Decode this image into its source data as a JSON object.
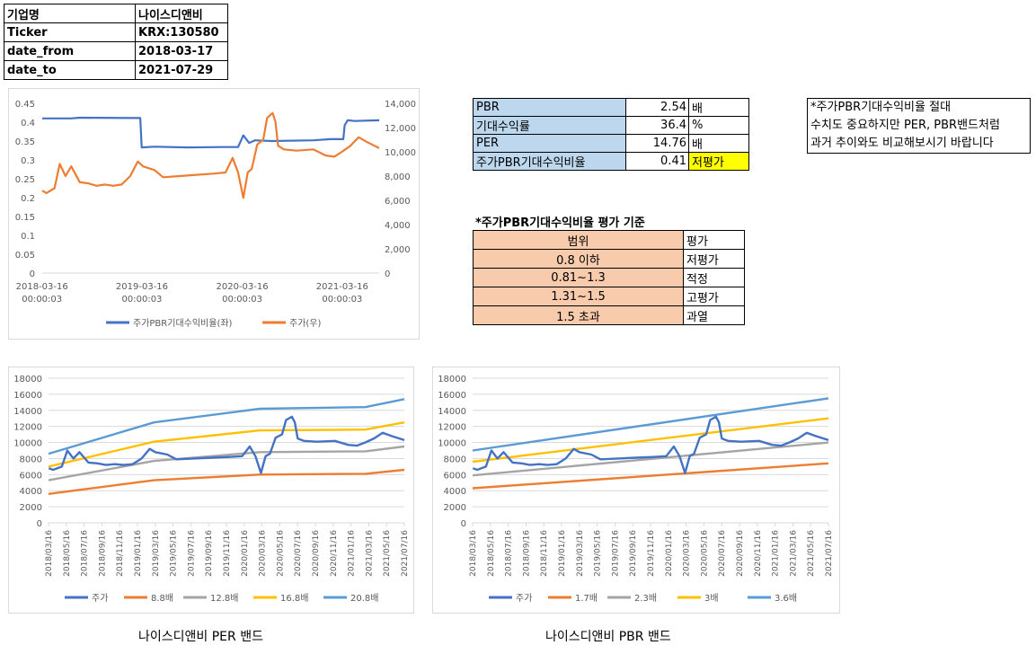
{
  "info": {
    "rows": [
      {
        "key": "기업명",
        "value": "나이스디앤비"
      },
      {
        "key": "Ticker",
        "value": "KRX:130580"
      },
      {
        "key": "date_from",
        "value": "2018-03-17"
      },
      {
        "key": "date_to",
        "value": "2021-07-29"
      }
    ]
  },
  "metrics": {
    "pbr": {
      "label": "PBR",
      "value": "2.54",
      "unit": "배"
    },
    "expected_return": {
      "label": "기대수익률",
      "value": "36.4",
      "unit": "%"
    },
    "per": {
      "label": "PER",
      "value": "14.76",
      "unit": "배"
    },
    "ratio": {
      "label": "주가PBR기대수익비율",
      "value": "0.41",
      "unit": "저평가"
    }
  },
  "note": {
    "lines": [
      "*주가PBR기대수익비율 절대",
      "수치도 중요하지만 PER, PBR밴드처럼",
      "과거 추이와도 비교해보시기 바랍니다"
    ]
  },
  "criteria": {
    "title": "*주가PBR기대수익비율 평가 기준",
    "header": {
      "range": "범위",
      "eval": "평가"
    },
    "rows": [
      {
        "range": "0.8 이하",
        "eval": "저평가"
      },
      {
        "range": "0.81~1.3",
        "eval": "적정"
      },
      {
        "range": "1.31~1.5",
        "eval": "고평가"
      },
      {
        "range": "1.5 초과",
        "eval": "과열"
      }
    ]
  },
  "captions": {
    "per_band": "나이스디앤비 PER 밴드",
    "pbr_band": "나이스디앤비 PBR 밴드"
  },
  "colors": {
    "blue": "#4472c4",
    "orange": "#ed7d31",
    "gray": "#a5a5a5",
    "yellow": "#ffc000",
    "lightblue": "#5b9bd5"
  },
  "chart_data": [
    {
      "type": "line",
      "x_ticks": [
        "2018-03-16 00:00:03",
        "2019-03-16 00:00:03",
        "2020-03-16 00:00:03",
        "2021-03-16 00:00:03"
      ],
      "x_tick_dates": [
        "2018-03-16",
        "2019-03-16",
        "2020-03-16",
        "2021-03-16"
      ],
      "x_range": [
        "2018-03-17",
        "2021-07-29"
      ],
      "y_left": {
        "min": 0,
        "max": 0.45,
        "ticks": [
          "0",
          "0.05",
          "0.1",
          "0.15",
          "0.2",
          "0.25",
          "0.3",
          "0.35",
          "0.4",
          "0.45"
        ]
      },
      "y_right": {
        "min": 0,
        "max": 14000,
        "ticks": [
          "0",
          "2,000",
          "4,000",
          "6,000",
          "8,000",
          "10,000",
          "12,000",
          "14,000"
        ]
      },
      "legend_position": "bottom",
      "series": [
        {
          "name": "주가PBR기대수익비율(좌)",
          "axis": "left",
          "color": "#4472c4",
          "points": [
            [
              "2018-03-17",
              0.41
            ],
            [
              "2018-07-01",
              0.41
            ],
            [
              "2018-08-01",
              0.412
            ],
            [
              "2019-03-10",
              0.411
            ],
            [
              "2019-03-15",
              0.333
            ],
            [
              "2019-05-01",
              0.335
            ],
            [
              "2019-09-01",
              0.333
            ],
            [
              "2020-01-01",
              0.334
            ],
            [
              "2020-03-01",
              0.334
            ],
            [
              "2020-03-20",
              0.365
            ],
            [
              "2020-04-10",
              0.345
            ],
            [
              "2020-05-01",
              0.352
            ],
            [
              "2020-07-01",
              0.35
            ],
            [
              "2020-12-01",
              0.352
            ],
            [
              "2021-02-01",
              0.355
            ],
            [
              "2021-03-20",
              0.355
            ],
            [
              "2021-03-25",
              0.392
            ],
            [
              "2021-04-05",
              0.405
            ],
            [
              "2021-05-01",
              0.403
            ],
            [
              "2021-07-29",
              0.405
            ]
          ]
        },
        {
          "name": "주가(우)",
          "axis": "right",
          "color": "#ed7d31",
          "points": [
            [
              "2018-03-17",
              6800
            ],
            [
              "2018-04-01",
              6600
            ],
            [
              "2018-05-01",
              7000
            ],
            [
              "2018-05-20",
              9000
            ],
            [
              "2018-06-10",
              8000
            ],
            [
              "2018-07-01",
              8800
            ],
            [
              "2018-08-01",
              7500
            ],
            [
              "2018-09-01",
              7400
            ],
            [
              "2018-10-01",
              7200
            ],
            [
              "2018-11-01",
              7300
            ],
            [
              "2018-12-01",
              7200
            ],
            [
              "2019-01-01",
              7300
            ],
            [
              "2019-02-01",
              8000
            ],
            [
              "2019-03-01",
              9200
            ],
            [
              "2019-03-20",
              8800
            ],
            [
              "2019-05-01",
              8500
            ],
            [
              "2019-06-01",
              7900
            ],
            [
              "2019-08-01",
              8000
            ],
            [
              "2019-10-01",
              8100
            ],
            [
              "2019-12-01",
              8200
            ],
            [
              "2020-01-15",
              8300
            ],
            [
              "2020-02-10",
              9500
            ],
            [
              "2020-03-01",
              8300
            ],
            [
              "2020-03-20",
              6200
            ],
            [
              "2020-04-05",
              8300
            ],
            [
              "2020-04-20",
              8600
            ],
            [
              "2020-05-10",
              10600
            ],
            [
              "2020-06-01",
              11000
            ],
            [
              "2020-06-15",
              12800
            ],
            [
              "2020-07-05",
              13200
            ],
            [
              "2020-07-15",
              12500
            ],
            [
              "2020-07-25",
              10500
            ],
            [
              "2020-08-15",
              10200
            ],
            [
              "2020-10-01",
              10100
            ],
            [
              "2020-12-01",
              10200
            ],
            [
              "2021-01-15",
              9700
            ],
            [
              "2021-02-15",
              9600
            ],
            [
              "2021-03-15",
              10000
            ],
            [
              "2021-04-15",
              10500
            ],
            [
              "2021-05-15",
              11200
            ],
            [
              "2021-06-15",
              10800
            ],
            [
              "2021-07-29",
              10300
            ]
          ]
        }
      ]
    },
    {
      "type": "line",
      "categories": [
        "2018/03/16",
        "2018/05/16",
        "2018/07/16",
        "2018/09/16",
        "2018/11/16",
        "2019/01/16",
        "2019/03/16",
        "2019/05/16",
        "2019/07/16",
        "2019/09/16",
        "2019/11/16",
        "2020/01/16",
        "2020/03/16",
        "2020/05/16",
        "2020/07/16",
        "2020/09/16",
        "2020/11/16",
        "2021/01/16",
        "2021/03/16",
        "2021/05/16",
        "2021/07/16"
      ],
      "x_range": [
        "2018-03-16",
        "2021-07-29"
      ],
      "y_range": [
        0,
        18000
      ],
      "y_ticks": [
        "0",
        "2000",
        "4000",
        "6000",
        "8000",
        "10000",
        "12000",
        "14000",
        "16000",
        "18000"
      ],
      "legend_position": "bottom",
      "series": [
        {
          "name": "주가",
          "color": "#4472c4",
          "points": [
            [
              "2018-03-17",
              6800
            ],
            [
              "2018-04-01",
              6600
            ],
            [
              "2018-05-01",
              7000
            ],
            [
              "2018-05-20",
              9000
            ],
            [
              "2018-06-10",
              8000
            ],
            [
              "2018-07-01",
              8800
            ],
            [
              "2018-08-01",
              7500
            ],
            [
              "2018-09-01",
              7400
            ],
            [
              "2018-10-01",
              7200
            ],
            [
              "2018-11-01",
              7300
            ],
            [
              "2018-12-01",
              7200
            ],
            [
              "2019-01-01",
              7300
            ],
            [
              "2019-02-01",
              8000
            ],
            [
              "2019-03-01",
              9200
            ],
            [
              "2019-03-20",
              8800
            ],
            [
              "2019-05-01",
              8500
            ],
            [
              "2019-06-01",
              7900
            ],
            [
              "2019-08-01",
              8000
            ],
            [
              "2019-10-01",
              8100
            ],
            [
              "2019-12-01",
              8200
            ],
            [
              "2020-01-15",
              8300
            ],
            [
              "2020-02-10",
              9500
            ],
            [
              "2020-03-01",
              8300
            ],
            [
              "2020-03-20",
              6200
            ],
            [
              "2020-04-05",
              8300
            ],
            [
              "2020-04-20",
              8600
            ],
            [
              "2020-05-10",
              10600
            ],
            [
              "2020-06-01",
              11000
            ],
            [
              "2020-06-15",
              12800
            ],
            [
              "2020-07-05",
              13200
            ],
            [
              "2020-07-15",
              12500
            ],
            [
              "2020-07-25",
              10500
            ],
            [
              "2020-08-15",
              10200
            ],
            [
              "2020-10-01",
              10100
            ],
            [
              "2020-12-01",
              10200
            ],
            [
              "2021-01-15",
              9700
            ],
            [
              "2021-02-15",
              9600
            ],
            [
              "2021-03-15",
              10000
            ],
            [
              "2021-04-15",
              10500
            ],
            [
              "2021-05-15",
              11200
            ],
            [
              "2021-06-15",
              10800
            ],
            [
              "2021-07-29",
              10300
            ]
          ]
        },
        {
          "name": "8.8배",
          "color": "#ed7d31",
          "points": [
            [
              "2018-03-16",
              3600
            ],
            [
              "2019-03-16",
              5300
            ],
            [
              "2020-03-16",
              6000
            ],
            [
              "2021-03-16",
              6100
            ],
            [
              "2021-07-29",
              6600
            ]
          ]
        },
        {
          "name": "12.8배",
          "color": "#a5a5a5",
          "points": [
            [
              "2018-03-16",
              5300
            ],
            [
              "2019-03-16",
              7700
            ],
            [
              "2020-03-16",
              8800
            ],
            [
              "2021-03-16",
              8900
            ],
            [
              "2021-07-29",
              9500
            ]
          ]
        },
        {
          "name": "16.8배",
          "color": "#ffc000",
          "points": [
            [
              "2018-03-16",
              7000
            ],
            [
              "2019-03-16",
              10100
            ],
            [
              "2020-03-16",
              11500
            ],
            [
              "2021-03-16",
              11600
            ],
            [
              "2021-07-29",
              12500
            ]
          ]
        },
        {
          "name": "20.8배",
          "color": "#5b9bd5",
          "points": [
            [
              "2018-03-16",
              8600
            ],
            [
              "2019-03-16",
              12500
            ],
            [
              "2020-03-16",
              14200
            ],
            [
              "2021-03-16",
              14400
            ],
            [
              "2021-07-29",
              15400
            ]
          ]
        }
      ]
    },
    {
      "type": "line",
      "categories": [
        "2018/03/16",
        "2018/05/16",
        "2018/07/16",
        "2018/09/16",
        "2018/11/16",
        "2019/01/16",
        "2019/03/16",
        "2019/05/16",
        "2019/07/16",
        "2019/09/16",
        "2019/11/16",
        "2020/01/16",
        "2020/03/16",
        "2020/05/16",
        "2020/07/16",
        "2020/09/16",
        "2020/11/16",
        "2021/01/16",
        "2021/03/16",
        "2021/05/16",
        "2021/07/16"
      ],
      "x_range": [
        "2018-03-16",
        "2021-07-29"
      ],
      "y_range": [
        0,
        18000
      ],
      "y_ticks": [
        "0",
        "2000",
        "4000",
        "6000",
        "8000",
        "10000",
        "12000",
        "14000",
        "16000",
        "18000"
      ],
      "legend_position": "bottom",
      "series": [
        {
          "name": "주가",
          "color": "#4472c4",
          "points": [
            [
              "2018-03-17",
              6800
            ],
            [
              "2018-04-01",
              6600
            ],
            [
              "2018-05-01",
              7000
            ],
            [
              "2018-05-20",
              9000
            ],
            [
              "2018-06-10",
              8000
            ],
            [
              "2018-07-01",
              8800
            ],
            [
              "2018-08-01",
              7500
            ],
            [
              "2018-09-01",
              7400
            ],
            [
              "2018-10-01",
              7200
            ],
            [
              "2018-11-01",
              7300
            ],
            [
              "2018-12-01",
              7200
            ],
            [
              "2019-01-01",
              7300
            ],
            [
              "2019-02-01",
              8000
            ],
            [
              "2019-03-01",
              9200
            ],
            [
              "2019-03-20",
              8800
            ],
            [
              "2019-05-01",
              8500
            ],
            [
              "2019-06-01",
              7900
            ],
            [
              "2019-08-01",
              8000
            ],
            [
              "2019-10-01",
              8100
            ],
            [
              "2019-12-01",
              8200
            ],
            [
              "2020-01-15",
              8300
            ],
            [
              "2020-02-10",
              9500
            ],
            [
              "2020-03-01",
              8300
            ],
            [
              "2020-03-20",
              6200
            ],
            [
              "2020-04-05",
              8300
            ],
            [
              "2020-04-20",
              8600
            ],
            [
              "2020-05-10",
              10600
            ],
            [
              "2020-06-01",
              11000
            ],
            [
              "2020-06-15",
              12800
            ],
            [
              "2020-07-05",
              13200
            ],
            [
              "2020-07-15",
              12500
            ],
            [
              "2020-07-25",
              10500
            ],
            [
              "2020-08-15",
              10200
            ],
            [
              "2020-10-01",
              10100
            ],
            [
              "2020-12-01",
              10200
            ],
            [
              "2021-01-15",
              9700
            ],
            [
              "2021-02-15",
              9600
            ],
            [
              "2021-03-15",
              10000
            ],
            [
              "2021-04-15",
              10500
            ],
            [
              "2021-05-15",
              11200
            ],
            [
              "2021-06-15",
              10800
            ],
            [
              "2021-07-29",
              10300
            ]
          ]
        },
        {
          "name": "1.7배",
          "color": "#ed7d31",
          "points": [
            [
              "2018-03-16",
              4300
            ],
            [
              "2021-07-29",
              7400
            ]
          ]
        },
        {
          "name": "2.3배",
          "color": "#a5a5a5",
          "points": [
            [
              "2018-03-16",
              5900
            ],
            [
              "2021-07-29",
              10000
            ]
          ]
        },
        {
          "name": "3배",
          "color": "#ffc000",
          "points": [
            [
              "2018-03-16",
              7600
            ],
            [
              "2021-07-29",
              13000
            ]
          ]
        },
        {
          "name": "3.6배",
          "color": "#5b9bd5",
          "points": [
            [
              "2018-03-16",
              9000
            ],
            [
              "2021-07-29",
              15500
            ]
          ]
        }
      ]
    }
  ]
}
